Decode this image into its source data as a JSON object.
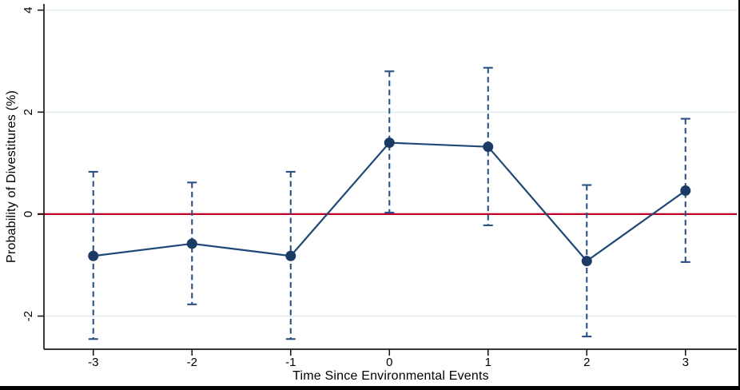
{
  "figure": {
    "background_color": "#ffffff",
    "frame_border_color": "#000000"
  },
  "chart_data": {
    "type": "line",
    "subtype": "event-study-coefficient-plot",
    "title": "",
    "xlabel": "Time Since Environmental Events",
    "ylabel": "Probability of Divestitures (%)",
    "x": [
      -3,
      -2,
      -1,
      0,
      1,
      2,
      3
    ],
    "series": [
      {
        "name": "coefficient",
        "values": [
          -0.82,
          -0.58,
          -0.82,
          1.4,
          1.32,
          -0.92,
          0.46
        ]
      },
      {
        "name": "ci_lower",
        "values": [
          -2.45,
          -1.77,
          -2.45,
          0.03,
          -0.22,
          -2.4,
          -0.94
        ]
      },
      {
        "name": "ci_upper",
        "values": [
          0.83,
          0.62,
          0.83,
          2.8,
          2.87,
          0.57,
          1.87
        ]
      }
    ],
    "points": [
      {
        "t": -3,
        "coef": -0.82,
        "lo": -2.45,
        "hi": 0.83
      },
      {
        "t": -2,
        "coef": -0.58,
        "lo": -1.77,
        "hi": 0.62
      },
      {
        "t": -1,
        "coef": -0.82,
        "lo": -2.45,
        "hi": 0.83
      },
      {
        "t": 0,
        "coef": 1.4,
        "lo": 0.03,
        "hi": 2.8
      },
      {
        "t": 1,
        "coef": 1.32,
        "lo": -0.22,
        "hi": 2.87
      },
      {
        "t": 2,
        "coef": -0.92,
        "lo": -2.4,
        "hi": 0.57
      },
      {
        "t": 3,
        "coef": 0.46,
        "lo": -0.94,
        "hi": 1.87
      }
    ],
    "x_ticks": [
      {
        "value": -3,
        "label": "-3"
      },
      {
        "value": -2,
        "label": "-2"
      },
      {
        "value": -1,
        "label": "-1"
      },
      {
        "value": 0,
        "label": "0"
      },
      {
        "value": 1,
        "label": "1"
      },
      {
        "value": 2,
        "label": "2"
      },
      {
        "value": 3,
        "label": "3"
      }
    ],
    "y_ticks": [
      {
        "value": -2,
        "label": "-2"
      },
      {
        "value": 0,
        "label": "0"
      },
      {
        "value": 2,
        "label": "2"
      },
      {
        "value": 4,
        "label": "4"
      }
    ],
    "xlim": [
      -3.5,
      3.52
    ],
    "ylim": [
      -2.65,
      4.12
    ],
    "grid": true,
    "gridline_values": [
      -2,
      0,
      2,
      4
    ],
    "zero_line_value": 0,
    "legend": "none",
    "colors": {
      "marker": "#1b3a64",
      "series_line": "#1f4876",
      "ci_line": "#2b5283",
      "zero_line": "#c10029",
      "gridline": "#e3edf0",
      "axis": "#1a1a1a",
      "tick_text": "#000000"
    }
  }
}
